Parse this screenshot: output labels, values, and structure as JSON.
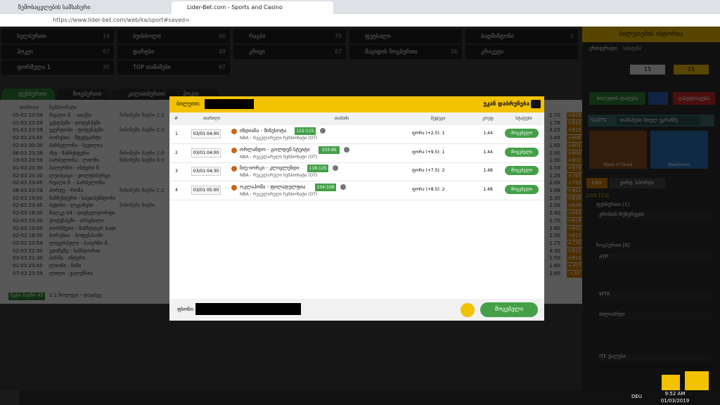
{
  "browser": {
    "tabs": [
      "ზემოსაცვლების სამსახური",
      "Lider-Bet.com - Sports and Casino"
    ],
    "url": "https://www.lider-bet.com/web/ka/sport#saved="
  },
  "sports": [
    [
      "ხელბურთი",
      "14"
    ],
    [
      "ბეისბოლი",
      "90"
    ],
    [
      "რაგბი",
      "70"
    ],
    [
      "ფუტსალი",
      ""
    ],
    [
      "ბადმინტონი",
      "2"
    ],
    [
      "ჰოკეი",
      "67"
    ],
    [
      "დარტსი",
      "49"
    ],
    [
      "კრივი",
      "87"
    ],
    [
      "მაგიდის ჩოგბურთი",
      "36"
    ],
    [
      "კრიკეტი",
      ""
    ],
    [
      "ფორმულა 1",
      "30"
    ],
    [
      "TOP თამაშები",
      "97"
    ]
  ],
  "sport_tabs": [
    "ფეხბურთი",
    "ჩოგბურთი",
    "კალათბურთი",
    "ჰოკეი"
  ],
  "list": {
    "headers": [
      "თარიღი",
      "ჩემპიონატი"
    ],
    "rows": [
      [
        "05-03 23:59",
        "რეალი მ. - აიაქსი",
        "მინიმუმი მატჩი 2:1"
      ],
      [
        "01-03 23:29",
        "ვესტჰემი - ტოტენჰემი",
        ""
      ],
      [
        "01-03 23:59",
        "ევერტონი - ტოტენჰემი",
        "მინიმუმი მატჩი 2:0"
      ],
      [
        "02-03 23:45",
        "ბორუსია - შტუტგარტი",
        ""
      ],
      [
        "02-03 00:30",
        "ბარსელონა - სევილია",
        ""
      ],
      [
        "06-03 23:39",
        "პსჟ - მანჩესტერი",
        "მინიმუმი მატჩი 2:0"
      ],
      [
        "13-03 23:59",
        "ბარსელონა - ლიონი",
        "მინიმუმი მატჩი 0:0"
      ],
      [
        "01-03 23:30",
        "პალერმო - ინტერი მ.",
        ""
      ],
      [
        "02-03 23:30",
        "ლეიპციგი - ვოლფსბურგი",
        ""
      ],
      [
        "02-03 23:45",
        "რეალი მ. - ბარსელონა",
        ""
      ],
      [
        "06-03 23:59",
        "პორტუ - რომა",
        "მინიმუმი მატჩი 1:2"
      ],
      [
        "02-03 19:00",
        "მანჩესტერი - საუთჰემპტონი",
        ""
      ],
      [
        "02-03 23:45",
        "ბეტისი - ლეგანესი",
        "მინიმუმი მატჩი"
      ],
      [
        "02-03 18:30",
        "შალკე 04 - დიუსელდორფი",
        ""
      ],
      [
        "02-03 23:30",
        "ტოტენჰემი - არსენალი",
        ""
      ],
      [
        "02-03 19:00",
        "ბორნმუთი - მანჩესტერ სიტი",
        ""
      ],
      [
        "02-03 18:00",
        "ბორუსია - ჰოფენჰაიმი",
        ""
      ],
      [
        "02-03 23:59",
        "ლივერპული - ბაიერნი მ.",
        ""
      ],
      [
        "02-03 21:30",
        "უდინეზე - სამპდორია",
        ""
      ],
      [
        "03-03 21:30",
        "პარმა - ინტერი",
        ""
      ],
      [
        "01-03 23:45",
        "ლიონი - ნიმი",
        ""
      ],
      [
        "07-03 23:59",
        "ლილი - ვალენსია",
        ""
      ]
    ],
    "odds": [
      [
        "2.70",
        "+819"
      ],
      [
        "1.76",
        "+824"
      ],
      [
        "4.25",
        "+823"
      ],
      [
        "2.45",
        "+806"
      ],
      [
        "1.85",
        "+801"
      ],
      [
        "2.00",
        "+804"
      ],
      [
        "1.90",
        "+802"
      ],
      [
        "1.55",
        "+979"
      ],
      [
        "1.25",
        "+765"
      ],
      [
        "2.00",
        "+799"
      ],
      [
        "1.88",
        "+951"
      ],
      [
        "2.30",
        "+839"
      ],
      [
        "2.00",
        "+838"
      ],
      [
        "2.40",
        "+843"
      ],
      [
        "1.70",
        "+819"
      ],
      [
        "2.80",
        "+852"
      ],
      [
        "2.00",
        "+815"
      ],
      [
        "1.75",
        "+776"
      ],
      [
        "4.30",
        "+822"
      ],
      [
        "1.50",
        "+814"
      ],
      [
        "1.60",
        "+707"
      ],
      [
        "2.60",
        "+30"
      ]
    ],
    "more": "მეტი მატჩი 45",
    "live_row": "1:1 ჩოლეგი - დადბეგ"
  },
  "modal": {
    "title": "ბილეთი:",
    "back": "უკან დაბრუნება",
    "headers": [
      "#",
      "თარიღი",
      "თამაში",
      "შედეგი",
      "კოეფ",
      "სტატუსი"
    ],
    "rows": [
      {
        "n": "1",
        "date": "03/01 04:00",
        "match": "ინდიანა - მინესოტა",
        "score": "122:115",
        "league": "NBA - რეგულარული ჩემპიონატი (OT)",
        "result": "ფორა (+2.5): 1",
        "coef": "1.44",
        "status": "მოგებული"
      },
      {
        "n": "2",
        "date": "03/01 04:00",
        "match": "ორლანდო - გოლდენ სტეიტი",
        "score": "103:96",
        "league": "NBA - რეგულარული ჩემპიონატი (OT)",
        "result": "ფორა (+9.5): 1",
        "coef": "1.44",
        "status": "მოგებული"
      },
      {
        "n": "3",
        "date": "03/01 04:30",
        "match": "ნიუ-იორკი - კლივლენდი",
        "score": "118:125",
        "league": "NBA - რეგულარული ჩემპიონატი (OT)",
        "result": "ფორა (+7.5): 2",
        "coef": "1.48",
        "status": "მოგებული"
      },
      {
        "n": "4",
        "date": "03/01 05:00",
        "match": "ოკლაჰომა - ფილადელფია",
        "score": "104:108",
        "league": "NBA - რეგულარული ჩემპიონატი (OT)",
        "result": "ფორა (+8.5): 2",
        "coef": "1.48",
        "status": "მოგებული"
      }
    ],
    "stake_label": "ფსონი:",
    "final_status": "მოგებული"
  },
  "sidebar": {
    "title": "ბილეთების ისტორია",
    "tabs": [
      "ერთჯერადი",
      "სისტემა"
    ],
    "values": [
      "15",
      "15"
    ],
    "place": "ბილეთის დადება",
    "clear": "გასუფთავება",
    "slots": "SLOTS",
    "slots_tab": "თამაშები მთელ ეკრანზე",
    "games": [
      "Book of Dead",
      "Reactoonz"
    ],
    "live_tabs": [
      "LIVE",
      "ვირტ. სპორტი"
    ],
    "live_head": "LIVE [23]",
    "items": [
      "ფეხბურთი [1]",
      "კროსის რეზერვები",
      "ჩოგბურთი [8]",
      "ATP",
      "WTA",
      "ბილიარდი",
      "ITF ქალები"
    ]
  },
  "taskbar": {
    "time": "9:52 AM",
    "date": "01/03/2019",
    "lang": "DEU"
  }
}
